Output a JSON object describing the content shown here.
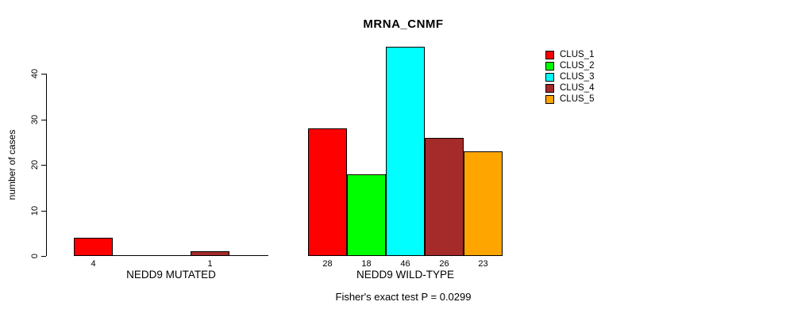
{
  "chart_data": {
    "type": "bar",
    "title": "MRNA_CNMF",
    "ylabel": "number of cases",
    "xlabel": "",
    "ylim": [
      0,
      40
    ],
    "y_ticks": [
      0,
      10,
      20,
      30,
      40
    ],
    "grid": false,
    "categories": [
      "NEDD9 MUTATED",
      "NEDD9 WILD-TYPE"
    ],
    "series": [
      {
        "name": "CLUS_1",
        "color": "#ff0000",
        "values": [
          4,
          28
        ]
      },
      {
        "name": "CLUS_2",
        "color": "#00ff00",
        "values": [
          0,
          18
        ]
      },
      {
        "name": "CLUS_3",
        "color": "#00ffff",
        "values": [
          0,
          46
        ]
      },
      {
        "name": "CLUS_4",
        "color": "#a52a2a",
        "values": [
          1,
          26
        ]
      },
      {
        "name": "CLUS_5",
        "color": "#ffa500",
        "values": [
          0,
          23
        ]
      }
    ],
    "legend_position": "top-right",
    "bar_value_labels": true,
    "zero_values_unlabeled": true,
    "annotation": "Fisher's exact test P = 0.0299"
  }
}
